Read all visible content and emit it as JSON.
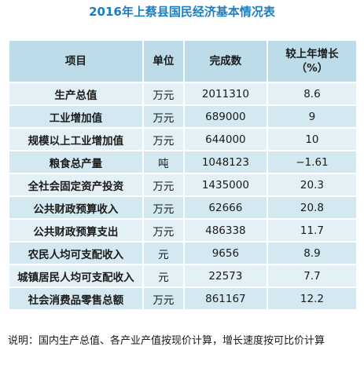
{
  "header": {
    "title": "2016年上蔡县国民经济基本情况表"
  },
  "table": {
    "columns": [
      "项目",
      "单位",
      "完成数",
      "较上年增长（%）"
    ],
    "rows": [
      [
        "生产总值",
        "万元",
        "2011310",
        "8.6"
      ],
      [
        "工业增加值",
        "万元",
        "689000",
        "9"
      ],
      [
        "规模以上工业增加值",
        "万元",
        "644000",
        "10"
      ],
      [
        "粮食总产量",
        "吨",
        "1048123",
        "−1.61"
      ],
      [
        "全社会固定资产投资",
        "万元",
        "1435000",
        "20.3"
      ],
      [
        "公共财政预算收入",
        "万元",
        "62666",
        "20.8"
      ],
      [
        "公共财政预算支出",
        "万元",
        "486338",
        "11.7"
      ],
      [
        "农民人均可支配收入",
        "元",
        "9656",
        "8.9"
      ],
      [
        "城镇居民人均可支配收入",
        "元",
        "22573",
        "7.7"
      ],
      [
        "社会消费品零售总额",
        "万元",
        "861167",
        "12.2"
      ]
    ]
  },
  "note": "说明：国内生产总值、各产业产值按现价计算，增长速度按可比价计算"
}
